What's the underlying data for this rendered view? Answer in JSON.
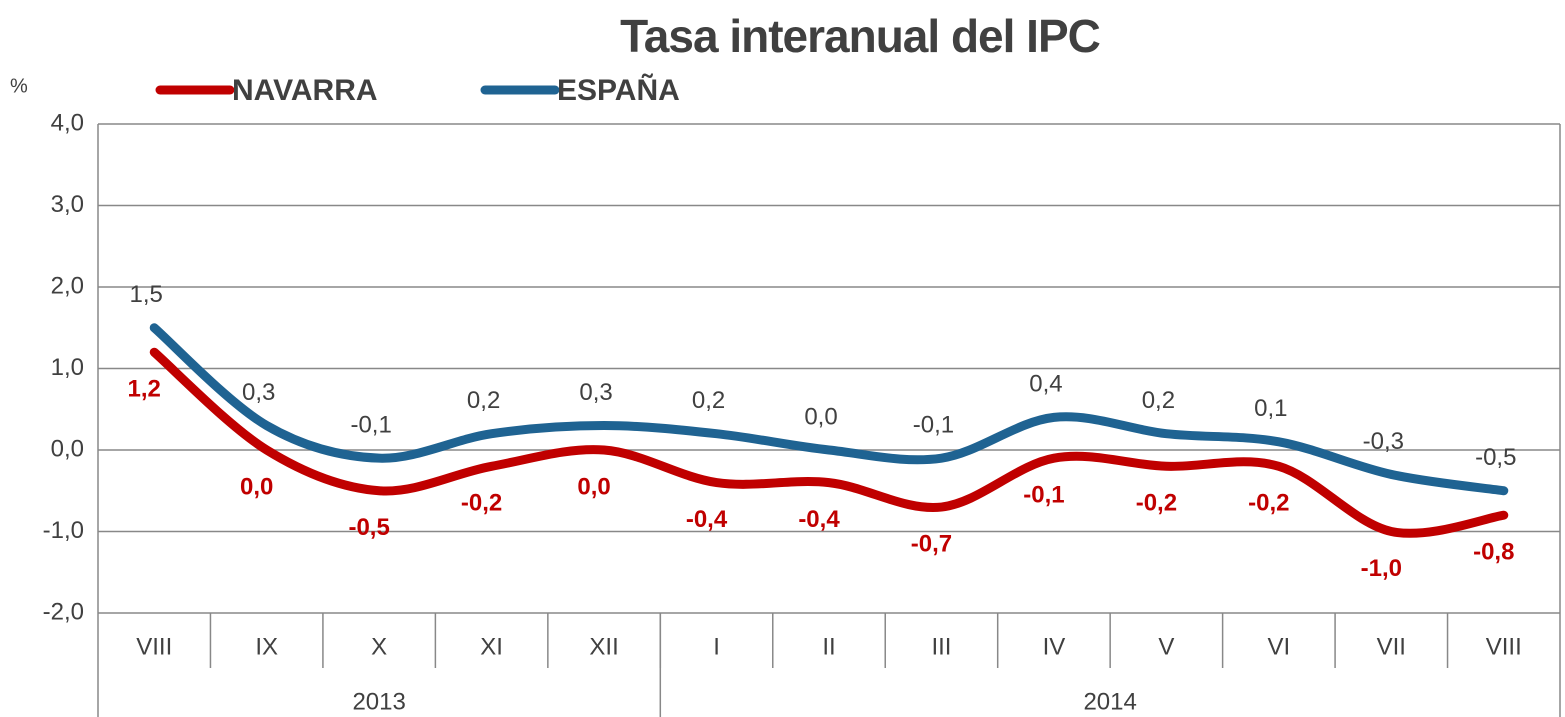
{
  "chart_data": {
    "type": "line",
    "title": "Tasa interanual del IPC",
    "y_label": "%",
    "categories": [
      "VIII",
      "IX",
      "X",
      "XI",
      "XII",
      "I",
      "II",
      "III",
      "IV",
      "V",
      "VI",
      "VII",
      "VIII"
    ],
    "category_groups": [
      {
        "label": "2013",
        "count": 5
      },
      {
        "label": "2014",
        "count": 8
      }
    ],
    "series": [
      {
        "name": "NAVARRA",
        "color": "#c00000",
        "values": [
          1.2,
          0.0,
          -0.5,
          -0.2,
          0.0,
          -0.4,
          -0.4,
          -0.7,
          -0.1,
          -0.2,
          -0.2,
          -1.0,
          -0.8
        ],
        "value_labels": [
          "1,2",
          "0,0",
          "-0,5",
          "-0,2",
          "0,0",
          "-0,4",
          "-0,4",
          "-0,7",
          "-0,1",
          "-0,2",
          "-0,2",
          "-1,0",
          "-0,8"
        ]
      },
      {
        "name": "ESPAÑA",
        "color": "#1f6392",
        "values": [
          1.5,
          0.3,
          -0.1,
          0.2,
          0.3,
          0.2,
          0.0,
          -0.1,
          0.4,
          0.2,
          0.1,
          -0.3,
          -0.5
        ],
        "value_labels": [
          "1,5",
          "0,3",
          "-0,1",
          "0,2",
          "0,3",
          "0,2",
          "0,0",
          "-0,1",
          "0,4",
          "0,2",
          "0,1",
          "-0,3",
          "-0,5"
        ]
      }
    ],
    "ylim": [
      -2,
      4
    ],
    "yticks": [
      {
        "value": -2,
        "label": "-2,0"
      },
      {
        "value": -1,
        "label": "-1,0"
      },
      {
        "value": 0,
        "label": "0,0"
      },
      {
        "value": 1,
        "label": "1,0"
      },
      {
        "value": 2,
        "label": "2,0"
      },
      {
        "value": 3,
        "label": "3,0"
      },
      {
        "value": 4,
        "label": "4,0"
      }
    ],
    "grid": true,
    "legend": "top"
  }
}
